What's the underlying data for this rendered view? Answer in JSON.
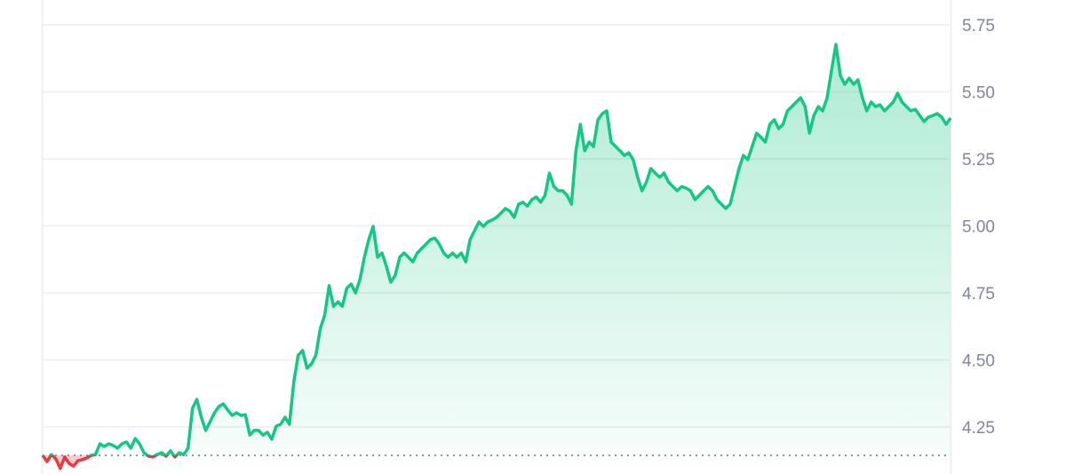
{
  "chart_data": {
    "type": "line",
    "title": "",
    "xlabel": "",
    "ylabel": "",
    "ylim": [
      4.1,
      5.84
    ],
    "y_ticks": [
      "4.25",
      "4.50",
      "4.75",
      "5.00",
      "5.25",
      "5.50",
      "5.75"
    ],
    "grid": "horizontal",
    "y_axis_side": "right",
    "baseline": 4.144,
    "colors": {
      "up": "#16c784",
      "down": "#ea3943",
      "grid": "#f0f1f3",
      "tick": "#7e8799"
    },
    "series": [
      {
        "values": [
          4.144,
          4.121,
          4.147,
          4.131,
          4.095,
          4.138,
          4.114,
          4.104,
          4.124,
          4.128,
          4.134,
          4.144,
          4.147,
          4.187,
          4.177,
          4.187,
          4.181,
          4.171,
          4.187,
          4.194,
          4.171,
          4.207,
          4.187,
          4.154,
          4.141,
          4.138,
          4.147,
          4.154,
          4.141,
          4.161,
          4.138,
          4.154,
          4.147,
          4.171,
          4.32,
          4.353,
          4.286,
          4.237,
          4.27,
          4.303,
          4.326,
          4.336,
          4.313,
          4.293,
          4.303,
          4.293,
          4.296,
          4.22,
          4.237,
          4.237,
          4.22,
          4.23,
          4.204,
          4.253,
          4.26,
          4.286,
          4.26,
          4.419,
          4.518,
          4.535,
          4.469,
          4.485,
          4.518,
          4.618,
          4.667,
          4.777,
          4.7,
          4.717,
          4.7,
          4.767,
          4.783,
          4.75,
          4.8,
          4.883,
          4.949,
          4.998,
          4.883,
          4.899,
          4.849,
          4.79,
          4.816,
          4.883,
          4.899,
          4.883,
          4.866,
          4.899,
          4.916,
          4.932,
          4.949,
          4.955,
          4.932,
          4.899,
          4.883,
          4.899,
          4.883,
          4.899,
          4.866,
          4.949,
          4.982,
          5.015,
          4.998,
          5.015,
          5.022,
          5.032,
          5.048,
          5.065,
          5.055,
          5.032,
          5.081,
          5.088,
          5.074,
          5.098,
          5.108,
          5.088,
          5.114,
          5.197,
          5.147,
          5.131,
          5.131,
          5.114,
          5.081,
          5.28,
          5.379,
          5.28,
          5.313,
          5.296,
          5.396,
          5.419,
          5.429,
          5.313,
          5.296,
          5.28,
          5.263,
          5.273,
          5.247,
          5.181,
          5.131,
          5.164,
          5.214,
          5.197,
          5.181,
          5.197,
          5.164,
          5.147,
          5.131,
          5.147,
          5.141,
          5.131,
          5.098,
          5.114,
          5.131,
          5.147,
          5.131,
          5.098,
          5.081,
          5.065,
          5.081,
          5.147,
          5.214,
          5.263,
          5.247,
          5.296,
          5.346,
          5.33,
          5.313,
          5.379,
          5.396,
          5.363,
          5.379,
          5.429,
          5.445,
          5.462,
          5.478,
          5.445,
          5.346,
          5.412,
          5.445,
          5.429,
          5.478,
          5.578,
          5.677,
          5.561,
          5.528,
          5.551,
          5.528,
          5.545,
          5.478,
          5.429,
          5.462,
          5.445,
          5.452,
          5.429,
          5.445,
          5.462,
          5.495,
          5.462,
          5.445,
          5.429,
          5.435,
          5.412,
          5.389,
          5.406,
          5.412,
          5.419,
          5.406,
          5.379,
          5.402
        ]
      }
    ]
  }
}
